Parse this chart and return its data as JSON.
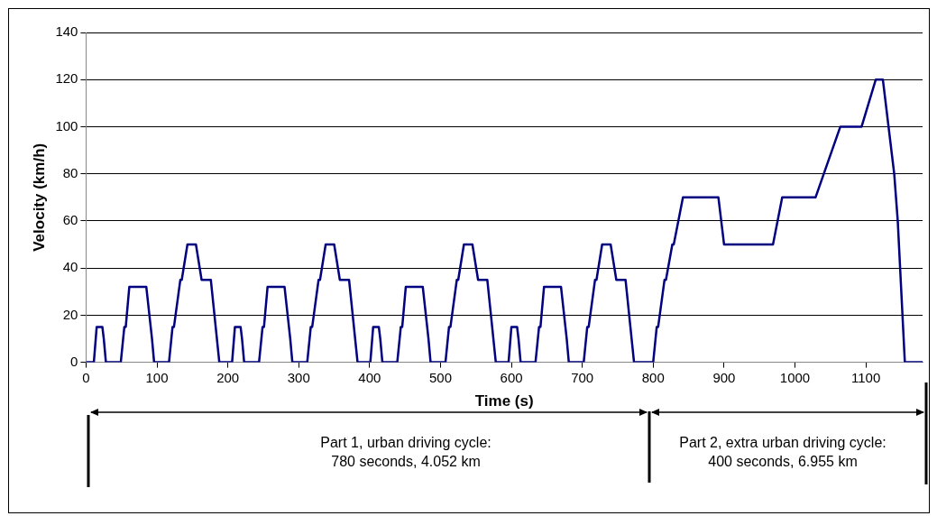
{
  "chart_data": {
    "type": "line",
    "xlabel": "Time (s)",
    "ylabel": "Velocity (km/h)",
    "x": [
      0,
      11,
      15,
      23,
      25,
      28,
      49,
      54,
      56,
      61,
      85,
      93,
      96,
      117,
      122,
      124,
      133,
      135,
      143,
      155,
      163,
      176,
      188,
      206,
      210,
      218,
      220,
      223,
      244,
      249,
      251,
      256,
      280,
      288,
      291,
      312,
      317,
      319,
      328,
      330,
      338,
      350,
      358,
      371,
      383,
      401,
      405,
      413,
      415,
      418,
      439,
      444,
      446,
      451,
      475,
      483,
      486,
      507,
      512,
      514,
      523,
      525,
      533,
      545,
      553,
      566,
      578,
      596,
      600,
      608,
      610,
      613,
      634,
      639,
      641,
      646,
      670,
      678,
      681,
      702,
      707,
      709,
      718,
      720,
      728,
      740,
      748,
      761,
      773,
      800,
      805,
      807,
      816,
      818,
      827,
      829,
      842,
      892,
      900,
      969,
      982,
      1029,
      1064,
      1094,
      1114,
      1124,
      1140,
      1145,
      1155,
      1180
    ],
    "series": [
      {
        "color": "#000080",
        "values": [
          0,
          0,
          15,
          15,
          10,
          0,
          0,
          15,
          15,
          32,
          32,
          10,
          0,
          0,
          15,
          15,
          35,
          35,
          50,
          50,
          35,
          35,
          0,
          0,
          15,
          15,
          10,
          0,
          0,
          15,
          15,
          32,
          32,
          10,
          0,
          0,
          15,
          15,
          35,
          35,
          50,
          50,
          35,
          35,
          0,
          0,
          15,
          15,
          10,
          0,
          0,
          15,
          15,
          32,
          32,
          10,
          0,
          0,
          15,
          15,
          35,
          35,
          50,
          50,
          35,
          35,
          0,
          0,
          15,
          15,
          10,
          0,
          0,
          15,
          15,
          32,
          32,
          10,
          0,
          0,
          15,
          15,
          35,
          35,
          50,
          50,
          35,
          35,
          0,
          0,
          15,
          15,
          35,
          35,
          50,
          50,
          70,
          70,
          50,
          50,
          70,
          70,
          100,
          100,
          120,
          120,
          80,
          60,
          0,
          0
        ]
      }
    ],
    "xlim": [
      0,
      1180
    ],
    "xticks": [
      0,
      100,
      200,
      300,
      400,
      500,
      600,
      700,
      800,
      900,
      1000,
      1100
    ],
    "ylim": [
      0,
      140
    ],
    "yticks": [
      0,
      20,
      40,
      60,
      80,
      100,
      120,
      140
    ],
    "grid": "y",
    "legend": false,
    "marker": "none",
    "line_style": "solid",
    "annotations": [
      "Part 1, urban driving cycle:\n780 seconds, 4.052 km",
      "Part 2, extra urban driving cycle:\n400 seconds, 6.955 km"
    ]
  }
}
